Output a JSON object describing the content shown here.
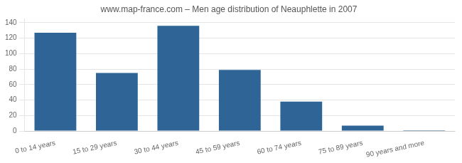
{
  "chart_data": {
    "type": "bar",
    "title": "www.map-france.com – Men age distribution of Neauphlette in 2007",
    "categories": [
      "0 to 14 years",
      "15 to 29 years",
      "30 to 44 years",
      "45 to 59 years",
      "60 to 74 years",
      "75 to 89 years",
      "90 years and more"
    ],
    "values": [
      127,
      75,
      136,
      79,
      38,
      7,
      1
    ],
    "color": "#2e6496",
    "ylim": [
      0,
      145
    ],
    "yticks": [
      0,
      20,
      40,
      60,
      80,
      100,
      120,
      140
    ],
    "grid": true
  }
}
